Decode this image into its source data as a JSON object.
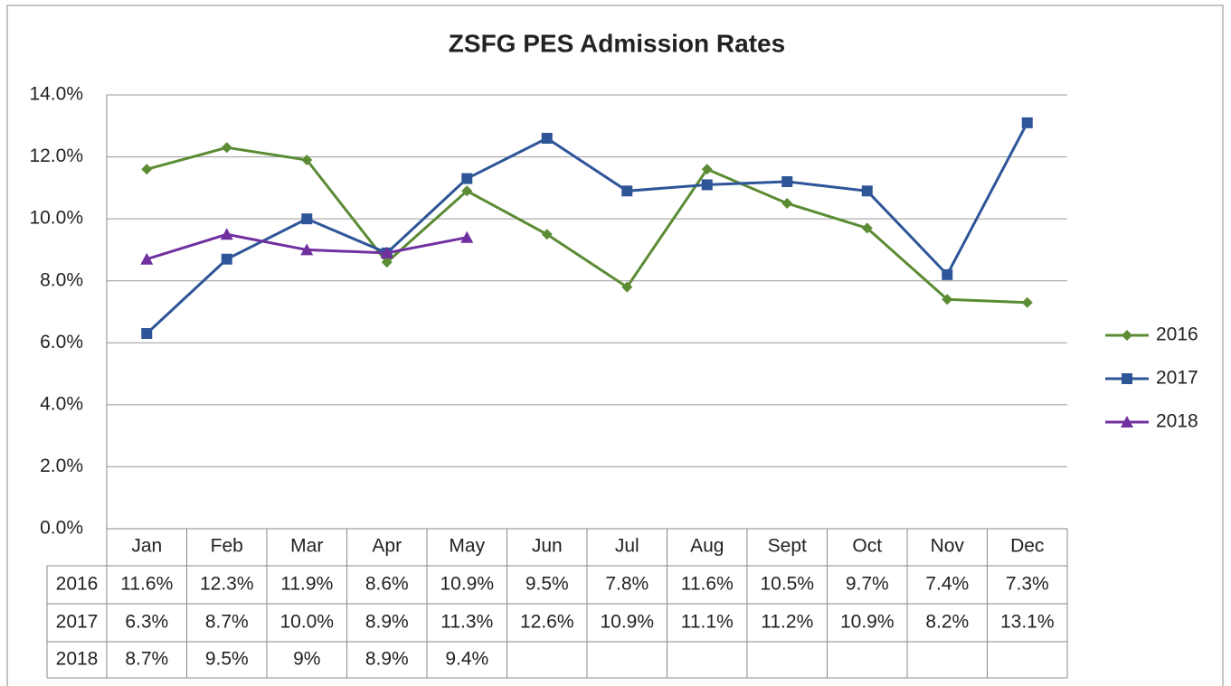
{
  "chart_data": {
    "type": "line",
    "title": "ZSFG PES Admission Rates",
    "categories": [
      "Jan",
      "Feb",
      "Mar",
      "Apr",
      "May",
      "Jun",
      "Jul",
      "Aug",
      "Sept",
      "Oct",
      "Nov",
      "Dec"
    ],
    "series": [
      {
        "name": "2016",
        "color": "#5b8b33",
        "marker": "diamond",
        "values": [
          11.6,
          12.3,
          11.9,
          8.6,
          10.9,
          9.5,
          7.8,
          11.6,
          10.5,
          9.7,
          7.4,
          7.3
        ],
        "value_labels": [
          "11.6%",
          "12.3%",
          "11.9%",
          "8.6%",
          "10.9%",
          "9.5%",
          "7.8%",
          "11.6%",
          "10.5%",
          "9.7%",
          "7.4%",
          "7.3%"
        ]
      },
      {
        "name": "2017",
        "color": "#2e5597",
        "marker": "square",
        "values": [
          6.3,
          8.7,
          10.0,
          8.9,
          11.3,
          12.6,
          10.9,
          11.1,
          11.2,
          10.9,
          8.2,
          13.1
        ],
        "value_labels": [
          "6.3%",
          "8.7%",
          "10.0%",
          "8.9%",
          "11.3%",
          "12.6%",
          "10.9%",
          "11.1%",
          "11.2%",
          "10.9%",
          "8.2%",
          "13.1%"
        ]
      },
      {
        "name": "2018",
        "color": "#7030a0",
        "marker": "triangle",
        "values": [
          8.7,
          9.5,
          9,
          8.9,
          9.4,
          null,
          null,
          null,
          null,
          null,
          null,
          null
        ],
        "value_labels": [
          "8.7%",
          "9.5%",
          "9%",
          "8.9%",
          "9.4%",
          null,
          null,
          null,
          null,
          null,
          null,
          null
        ]
      }
    ],
    "ylim": [
      0,
      14
    ],
    "yticks": [
      {
        "value": 0,
        "label": "0.0%"
      },
      {
        "value": 2,
        "label": "2.0%"
      },
      {
        "value": 4,
        "label": "4.0%"
      },
      {
        "value": 6,
        "label": "6.0%"
      },
      {
        "value": 8,
        "label": "8.0%"
      },
      {
        "value": 10,
        "label": "10.0%"
      },
      {
        "value": 12,
        "label": "12.0%"
      },
      {
        "value": 14,
        "label": "14.0%"
      }
    ],
    "grid": true,
    "legend": "right",
    "data_table": true
  }
}
